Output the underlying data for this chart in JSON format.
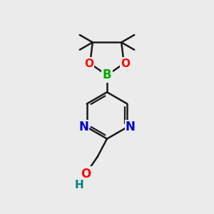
{
  "bg_color": "#ebebeb",
  "bond_color": "#1a1a1a",
  "N_color": "#0000cc",
  "O_color": "#ff0000",
  "B_color": "#00aa00",
  "H_color": "#008080",
  "line_width": 1.8,
  "figsize": [
    3.0,
    3.0
  ],
  "dpi": 100,
  "xlim": [
    0,
    10
  ],
  "ylim": [
    0,
    10
  ]
}
